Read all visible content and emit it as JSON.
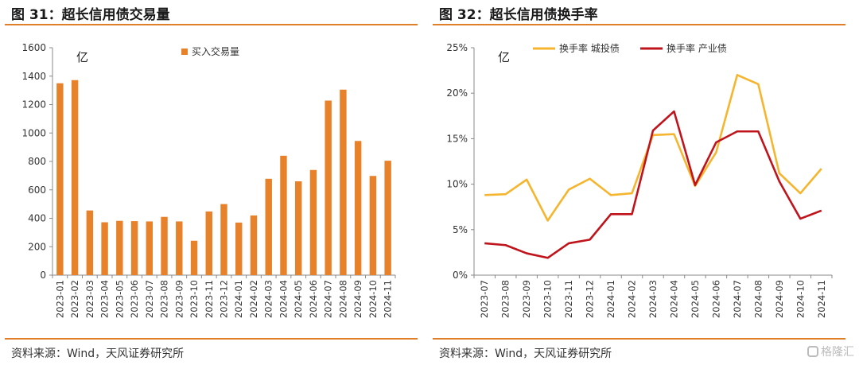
{
  "left": {
    "title": "图 31：超长信用债交易量",
    "source": "资料来源：Wind，天风证券研究所"
  },
  "right": {
    "title": "图 32：超长信用债换手率",
    "source": "资料来源：Wind，天风证券研究所"
  },
  "watermark": "格隆汇",
  "chart_data": [
    {
      "type": "bar",
      "title": "图 31：超长信用债交易量",
      "unit_label": "亿",
      "categories": [
        "2023-01",
        "2023-02",
        "2023-03",
        "2023-04",
        "2023-05",
        "2023-06",
        "2023-07",
        "2023-08",
        "2023-09",
        "2023-10",
        "2023-11",
        "2023-12",
        "2024-01",
        "2024-02",
        "2024-03",
        "2024-04",
        "2024-05",
        "2024-06",
        "2024-07",
        "2024-08",
        "2024-09",
        "2024-10",
        "2024-11"
      ],
      "series": [
        {
          "name": "买入交易量",
          "color": "#e8822a",
          "values": [
            1350,
            1372,
            455,
            372,
            382,
            380,
            378,
            410,
            378,
            242,
            448,
            500,
            370,
            420,
            678,
            840,
            660,
            740,
            1228,
            1305,
            944,
            698,
            805
          ]
        }
      ],
      "ylim": [
        0,
        1600
      ],
      "yticks": [
        "0",
        "200",
        "400",
        "600",
        "800",
        "1000",
        "1200",
        "1400",
        "1600"
      ],
      "legend": "top-center",
      "grid": false
    },
    {
      "type": "line",
      "title": "图 32：超长信用债换手率",
      "unit_label": "亿",
      "categories": [
        "2023-07",
        "2023-08",
        "2023-09",
        "2023-10",
        "2023-11",
        "2023-12",
        "2024-01",
        "2024-02",
        "2024-03",
        "2024-04",
        "2024-05",
        "2024-06",
        "2024-07",
        "2024-08",
        "2024-09",
        "2024-10",
        "2024-11"
      ],
      "series": [
        {
          "name": "换手率  城投债",
          "color": "#f5b52e",
          "values": [
            8.8,
            8.9,
            10.5,
            6.0,
            9.4,
            10.6,
            8.8,
            9.0,
            15.4,
            15.5,
            9.8,
            13.5,
            22.0,
            21.0,
            11.2,
            9.0,
            11.7
          ]
        },
        {
          "name": "换手率  产业债",
          "color": "#c0141c",
          "values": [
            3.5,
            3.3,
            2.4,
            1.9,
            3.5,
            3.9,
            6.7,
            6.7,
            15.9,
            18.0,
            9.9,
            14.6,
            15.8,
            15.8,
            10.3,
            6.2,
            7.1
          ]
        }
      ],
      "ylim": [
        0,
        25
      ],
      "yticks": [
        "0%",
        "5%",
        "10%",
        "15%",
        "20%",
        "25%"
      ],
      "legend": "top-center",
      "grid": false
    }
  ]
}
